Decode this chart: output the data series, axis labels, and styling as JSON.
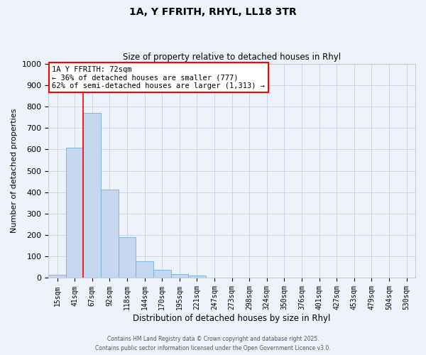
{
  "title": "1A, Y FFRITH, RHYL, LL18 3TR",
  "subtitle": "Size of property relative to detached houses in Rhyl",
  "xlabel": "Distribution of detached houses by size in Rhyl",
  "ylabel": "Number of detached properties",
  "bar_color": "#c5d8f0",
  "bar_edge_color": "#7aafd4",
  "background_color": "#eef2fb",
  "grid_color": "#ccd5ee",
  "categories": [
    "15sqm",
    "41sqm",
    "67sqm",
    "92sqm",
    "118sqm",
    "144sqm",
    "170sqm",
    "195sqm",
    "221sqm",
    "247sqm",
    "273sqm",
    "298sqm",
    "324sqm",
    "350sqm",
    "376sqm",
    "401sqm",
    "427sqm",
    "453sqm",
    "479sqm",
    "504sqm",
    "530sqm"
  ],
  "values": [
    15,
    607,
    770,
    412,
    192,
    77,
    38,
    17,
    10,
    0,
    0,
    0,
    0,
    0,
    0,
    0,
    0,
    0,
    0,
    0,
    0
  ],
  "ylim": [
    0,
    1000
  ],
  "yticks": [
    0,
    100,
    200,
    300,
    400,
    500,
    600,
    700,
    800,
    900,
    1000
  ],
  "red_line_index": 2,
  "annot_line1": "1A Y FFRITH: 72sqm",
  "annot_line2": "← 36% of detached houses are smaller (777)",
  "annot_line3": "62% of semi-detached houses are larger (1,313) →",
  "footer_line1": "Contains HM Land Registry data © Crown copyright and database right 2025.",
  "footer_line2": "Contains public sector information licensed under the Open Government Licence v3.0."
}
